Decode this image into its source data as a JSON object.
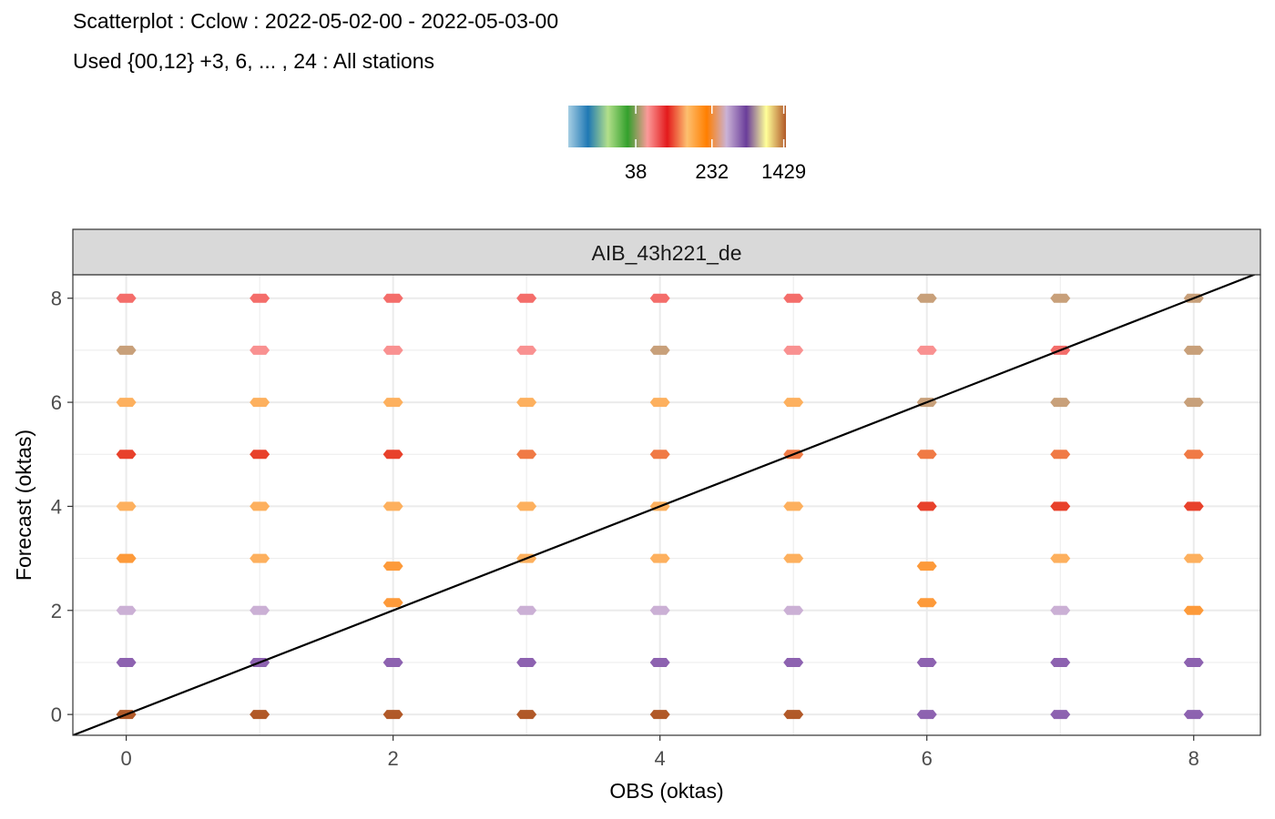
{
  "chart_data": {
    "type": "scatter",
    "title": "Scatterplot : Cclow : 2022-05-02-00 - 2022-05-03-00",
    "subtitle": "Used {00,12} +3, 6, ... , 24 : All stations",
    "panel_label": "AIB_43h221_de",
    "xlabel": "OBS (oktas)",
    "ylabel": "Forecast (oktas)",
    "xlim": [
      -0.4,
      8.5
    ],
    "ylim": [
      -0.4,
      8.45
    ],
    "x_ticks": [
      "0",
      "2",
      "4",
      "6",
      "8"
    ],
    "y_ticks": [
      "0",
      "2",
      "4",
      "6",
      "8"
    ],
    "grid": true,
    "reference_line": {
      "type": "diagonal",
      "slope": 1,
      "intercept": 0,
      "color": "#000000"
    },
    "legend": {
      "placement": "top",
      "type": "colorbar",
      "tick_labels": [
        "38",
        "232",
        "1429"
      ],
      "tick_positions": [
        0.31,
        0.66,
        0.99
      ],
      "colors": [
        "#a6cee3",
        "#1f78b4",
        "#b2df8a",
        "#33a02c",
        "#fb9a99",
        "#e31a1c",
        "#fdbf6f",
        "#ff7f00",
        "#cab2d6",
        "#6a3d9a",
        "#ffff99",
        "#b15928"
      ]
    },
    "points": [
      {
        "x": 0,
        "y": 8,
        "color": "#f46d6a"
      },
      {
        "x": 1,
        "y": 8,
        "color": "#f46d6a"
      },
      {
        "x": 2,
        "y": 8,
        "color": "#f46d6a"
      },
      {
        "x": 3,
        "y": 8,
        "color": "#f46d6a"
      },
      {
        "x": 4,
        "y": 8,
        "color": "#f46d6a"
      },
      {
        "x": 5,
        "y": 8,
        "color": "#f46d6a"
      },
      {
        "x": 6,
        "y": 8,
        "color": "#c8a07a"
      },
      {
        "x": 7,
        "y": 8,
        "color": "#c8a07a"
      },
      {
        "x": 8,
        "y": 8,
        "color": "#c8a07a"
      },
      {
        "x": 0,
        "y": 7,
        "color": "#c8a07a"
      },
      {
        "x": 1,
        "y": 7,
        "color": "#f99191"
      },
      {
        "x": 2,
        "y": 7,
        "color": "#f99191"
      },
      {
        "x": 3,
        "y": 7,
        "color": "#f99191"
      },
      {
        "x": 4,
        "y": 7,
        "color": "#c8a07a"
      },
      {
        "x": 5,
        "y": 7,
        "color": "#f99191"
      },
      {
        "x": 6,
        "y": 7,
        "color": "#f99191"
      },
      {
        "x": 7,
        "y": 7,
        "color": "#f46d6a"
      },
      {
        "x": 8,
        "y": 7,
        "color": "#c8a07a"
      },
      {
        "x": 0,
        "y": 6,
        "color": "#fdb05e"
      },
      {
        "x": 1,
        "y": 6,
        "color": "#fdb05e"
      },
      {
        "x": 2,
        "y": 6,
        "color": "#fdb05e"
      },
      {
        "x": 3,
        "y": 6,
        "color": "#fdb05e"
      },
      {
        "x": 4,
        "y": 6,
        "color": "#fdb05e"
      },
      {
        "x": 5,
        "y": 6,
        "color": "#fdb05e"
      },
      {
        "x": 6,
        "y": 6,
        "color": "#c8a07a"
      },
      {
        "x": 7,
        "y": 6,
        "color": "#c8a07a"
      },
      {
        "x": 8,
        "y": 6,
        "color": "#c8a07a"
      },
      {
        "x": 0,
        "y": 5,
        "color": "#e8412b"
      },
      {
        "x": 1,
        "y": 5,
        "color": "#e8412b"
      },
      {
        "x": 2,
        "y": 5,
        "color": "#e8412b"
      },
      {
        "x": 3,
        "y": 5,
        "color": "#f07a45"
      },
      {
        "x": 4,
        "y": 5,
        "color": "#f07a45"
      },
      {
        "x": 5,
        "y": 5,
        "color": "#f07a45"
      },
      {
        "x": 6,
        "y": 5,
        "color": "#f07a45"
      },
      {
        "x": 7,
        "y": 5,
        "color": "#f07a45"
      },
      {
        "x": 8,
        "y": 5,
        "color": "#f07a45"
      },
      {
        "x": 0,
        "y": 4,
        "color": "#fdb05e"
      },
      {
        "x": 1,
        "y": 4,
        "color": "#fdb05e"
      },
      {
        "x": 2,
        "y": 4,
        "color": "#fdb05e"
      },
      {
        "x": 3,
        "y": 4,
        "color": "#fdb05e"
      },
      {
        "x": 4,
        "y": 4,
        "color": "#fdb05e"
      },
      {
        "x": 5,
        "y": 4,
        "color": "#fdb05e"
      },
      {
        "x": 6,
        "y": 4,
        "color": "#e8412b"
      },
      {
        "x": 7,
        "y": 4,
        "color": "#e8412b"
      },
      {
        "x": 8,
        "y": 4,
        "color": "#e8412b"
      },
      {
        "x": 0,
        "y": 3,
        "color": "#fd9a3a"
      },
      {
        "x": 1,
        "y": 3,
        "color": "#fdb05e"
      },
      {
        "x": 2,
        "y": 2.85,
        "color": "#fd9a3a"
      },
      {
        "x": 3,
        "y": 3,
        "color": "#fdb05e"
      },
      {
        "x": 4,
        "y": 3,
        "color": "#fdb05e"
      },
      {
        "x": 5,
        "y": 3,
        "color": "#fdb05e"
      },
      {
        "x": 6,
        "y": 2.85,
        "color": "#fd9a3a"
      },
      {
        "x": 7,
        "y": 3,
        "color": "#fdb05e"
      },
      {
        "x": 8,
        "y": 3,
        "color": "#fdb05e"
      },
      {
        "x": 0,
        "y": 2,
        "color": "#cbb0d5"
      },
      {
        "x": 1,
        "y": 2,
        "color": "#cbb0d5"
      },
      {
        "x": 2,
        "y": 2.15,
        "color": "#fd9a3a"
      },
      {
        "x": 3,
        "y": 2,
        "color": "#cbb0d5"
      },
      {
        "x": 4,
        "y": 2,
        "color": "#cbb0d5"
      },
      {
        "x": 5,
        "y": 2,
        "color": "#cbb0d5"
      },
      {
        "x": 6,
        "y": 2.15,
        "color": "#fd9a3a"
      },
      {
        "x": 7,
        "y": 2,
        "color": "#cbb0d5"
      },
      {
        "x": 8,
        "y": 2,
        "color": "#fd9a3a"
      },
      {
        "x": 0,
        "y": 1,
        "color": "#8d62b0"
      },
      {
        "x": 1,
        "y": 1,
        "color": "#8d62b0"
      },
      {
        "x": 2,
        "y": 1,
        "color": "#8d62b0"
      },
      {
        "x": 3,
        "y": 1,
        "color": "#8d62b0"
      },
      {
        "x": 4,
        "y": 1,
        "color": "#8d62b0"
      },
      {
        "x": 5,
        "y": 1,
        "color": "#8d62b0"
      },
      {
        "x": 6,
        "y": 1,
        "color": "#8d62b0"
      },
      {
        "x": 7,
        "y": 1,
        "color": "#8d62b0"
      },
      {
        "x": 8,
        "y": 1,
        "color": "#8d62b0"
      },
      {
        "x": 0,
        "y": 0,
        "color": "#b15928"
      },
      {
        "x": 1,
        "y": 0,
        "color": "#b15928"
      },
      {
        "x": 2,
        "y": 0,
        "color": "#b15928"
      },
      {
        "x": 3,
        "y": 0,
        "color": "#b15928"
      },
      {
        "x": 4,
        "y": 0,
        "color": "#b15928"
      },
      {
        "x": 5,
        "y": 0,
        "color": "#b15928"
      },
      {
        "x": 6,
        "y": 0,
        "color": "#8d62b0"
      },
      {
        "x": 7,
        "y": 0,
        "color": "#8d62b0"
      },
      {
        "x": 8,
        "y": 0,
        "color": "#8d62b0"
      }
    ]
  }
}
